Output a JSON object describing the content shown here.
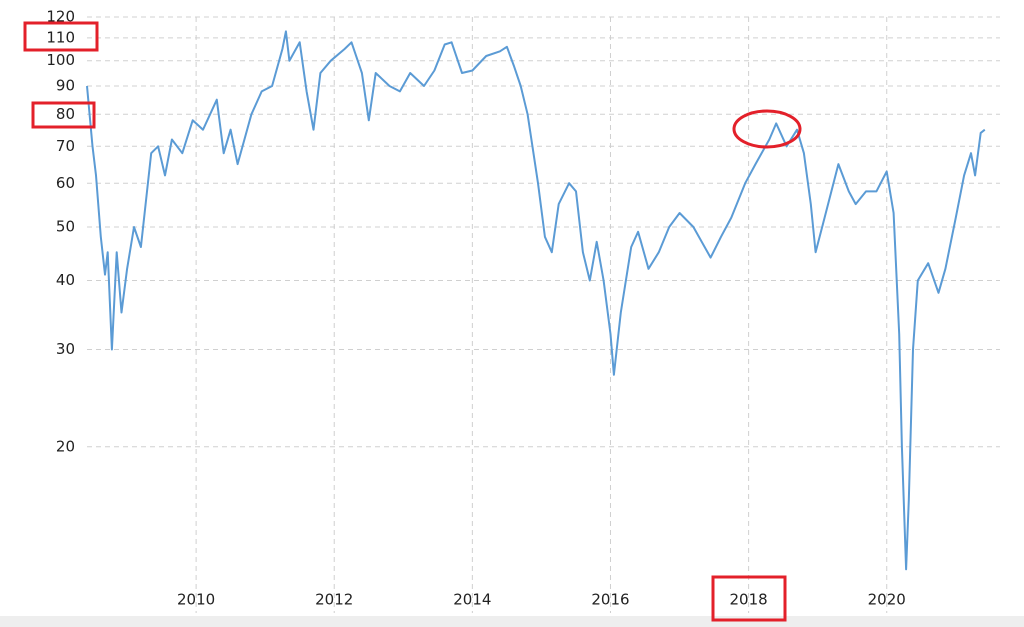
{
  "chart_data": {
    "type": "line",
    "log_scale_y": true,
    "grid": true,
    "xlim": [
      2008.42,
      2021.64
    ],
    "xticks": [
      2010,
      2012,
      2014,
      2016,
      2018,
      2020
    ],
    "ylim": [
      10,
      120
    ],
    "yticks": [
      20,
      30,
      40,
      50,
      60,
      70,
      80,
      90,
      100,
      110,
      120
    ],
    "series": [
      {
        "color": "#5b9bd5",
        "x": [
          2008.42,
          2008.5,
          2008.55,
          2008.62,
          2008.68,
          2008.72,
          2008.78,
          2008.85,
          2008.92,
          2009.0,
          2009.1,
          2009.2,
          2009.35,
          2009.45,
          2009.55,
          2009.65,
          2009.8,
          2009.95,
          2010.1,
          2010.3,
          2010.4,
          2010.5,
          2010.6,
          2010.8,
          2010.95,
          2011.1,
          2011.25,
          2011.3,
          2011.35,
          2011.5,
          2011.6,
          2011.7,
          2011.8,
          2011.95,
          2012.15,
          2012.25,
          2012.4,
          2012.5,
          2012.6,
          2012.8,
          2012.95,
          2013.1,
          2013.3,
          2013.45,
          2013.6,
          2013.7,
          2013.85,
          2014.0,
          2014.2,
          2014.4,
          2014.5,
          2014.6,
          2014.7,
          2014.8,
          2014.95,
          2015.05,
          2015.15,
          2015.25,
          2015.4,
          2015.5,
          2015.6,
          2015.7,
          2015.8,
          2015.9,
          2016.0,
          2016.05,
          2016.15,
          2016.3,
          2016.4,
          2016.55,
          2016.7,
          2016.85,
          2017.0,
          2017.2,
          2017.45,
          2017.6,
          2017.75,
          2017.95,
          2018.1,
          2018.3,
          2018.4,
          2018.55,
          2018.7,
          2018.8,
          2018.9,
          2018.97,
          2019.1,
          2019.3,
          2019.45,
          2019.55,
          2019.7,
          2019.85,
          2020.0,
          2020.1,
          2020.18,
          2020.22,
          2020.28,
          2020.32,
          2020.38,
          2020.45,
          2020.6,
          2020.75,
          2020.85,
          2021.0,
          2021.12,
          2021.22,
          2021.28,
          2021.36,
          2021.42
        ],
        "values": [
          90,
          70,
          62,
          48,
          41,
          45,
          30,
          45,
          35,
          42,
          50,
          46,
          68,
          70,
          62,
          72,
          68,
          78,
          75,
          85,
          68,
          75,
          65,
          80,
          88,
          90,
          105,
          113,
          100,
          108,
          88,
          75,
          95,
          100,
          105,
          108,
          95,
          78,
          95,
          90,
          88,
          95,
          90,
          96,
          107,
          108,
          95,
          96,
          102,
          104,
          106,
          98,
          90,
          80,
          60,
          48,
          45,
          55,
          60,
          58,
          45,
          40,
          47,
          40,
          32,
          27,
          35,
          46,
          49,
          42,
          45,
          50,
          53,
          50,
          44,
          48,
          52,
          60,
          65,
          72,
          77,
          70,
          75,
          68,
          55,
          45,
          52,
          65,
          58,
          55,
          58,
          58,
          63,
          53,
          32,
          20,
          12,
          16,
          30,
          40,
          43,
          38,
          42,
          52,
          62,
          68,
          62,
          74,
          75
        ]
      }
    ]
  }
}
